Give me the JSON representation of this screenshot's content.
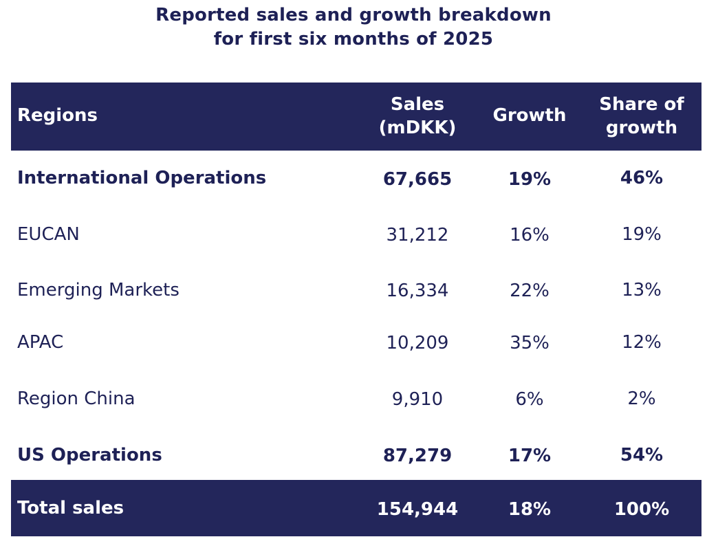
{
  "chart_data": {
    "type": "table",
    "title_line1": "Reported sales and growth breakdown",
    "title_line2": "for first six months of 2025",
    "headers": {
      "region": "Regions",
      "sales_line1": "Sales",
      "sales_line2": "(mDKK)",
      "growth": "Growth",
      "share_line1": "Share of",
      "share_line2": "growth"
    },
    "rows": [
      {
        "region": "International Operations",
        "sales": "67,665",
        "growth": "19%",
        "share": "46%",
        "bold": true
      },
      {
        "region": "EUCAN",
        "sales": "31,212",
        "growth": "16%",
        "share": "19%",
        "bold": false
      },
      {
        "region": "Emerging Markets",
        "sales": "16,334",
        "growth": "22%",
        "share": "13%",
        "bold": false
      },
      {
        "region": "APAC",
        "sales": "10,209",
        "growth": "35%",
        "share": "12%",
        "bold": false
      },
      {
        "region": "Region China",
        "sales": "9,910",
        "growth": "6%",
        "share": "2%",
        "bold": false
      },
      {
        "region": "US Operations",
        "sales": "87,279",
        "growth": "17%",
        "share": "54%",
        "bold": true
      }
    ],
    "total": {
      "region": "Total sales",
      "sales": "154,944",
      "growth": "18%",
      "share": "100%"
    }
  },
  "colors": {
    "navy": "#23265b",
    "text": "#1e2156",
    "header_text": "#ffffff"
  }
}
